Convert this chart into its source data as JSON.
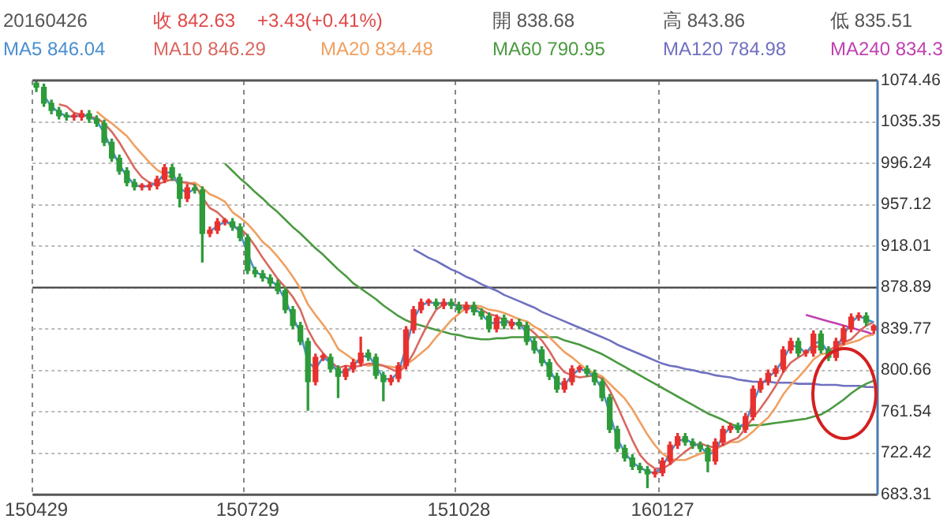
{
  "chart_data": {
    "type": "candlestick",
    "categories": [
      "150429",
      null,
      null,
      null,
      null,
      null,
      null,
      null,
      null,
      null,
      null,
      null,
      null,
      null,
      null,
      null,
      null,
      null,
      null,
      null,
      null,
      null,
      null,
      null,
      null,
      null,
      null,
      null,
      "150729",
      null,
      null,
      null,
      null,
      null,
      null,
      null,
      null,
      null,
      null,
      null,
      null,
      null,
      null,
      null,
      null,
      null,
      null,
      null,
      null,
      null,
      null,
      null,
      null,
      null,
      null,
      null,
      "151028",
      null,
      null,
      null,
      null,
      null,
      null,
      null,
      null,
      null,
      null,
      null,
      null,
      null,
      null,
      null,
      null,
      null,
      null,
      null,
      null,
      null,
      null,
      null,
      null,
      null,
      null,
      "160127",
      null,
      null,
      null,
      null,
      null,
      null,
      null,
      null,
      null,
      null,
      null,
      null,
      null,
      null,
      null,
      null,
      null,
      null,
      null,
      null,
      null,
      null,
      null,
      null,
      null,
      null,
      null,
      null
    ],
    "ohlc": [
      [
        1072,
        1074,
        1064,
        1068
      ],
      [
        1068,
        1071,
        1050,
        1053
      ],
      [
        1053,
        1056,
        1043,
        1046
      ],
      [
        1046,
        1049,
        1038,
        1041
      ],
      [
        1041,
        1044,
        1037,
        1040
      ],
      [
        1040,
        1043,
        1037,
        1040
      ],
      [
        1040,
        1046,
        1037,
        1043
      ],
      [
        1043,
        1046,
        1035,
        1038
      ],
      [
        1038,
        1041,
        1031,
        1034
      ],
      [
        1034,
        1037,
        1013,
        1016
      ],
      [
        1016,
        1019,
        998,
        1001
      ],
      [
        1001,
        1004,
        986,
        989
      ],
      [
        989,
        992,
        975,
        978
      ],
      [
        978,
        981,
        971,
        974
      ],
      [
        974,
        977,
        971,
        974
      ],
      [
        974,
        978,
        971,
        975
      ],
      [
        975,
        984,
        972,
        981
      ],
      [
        981,
        995,
        978,
        992
      ],
      [
        992,
        995,
        980,
        983
      ],
      [
        983,
        986,
        955,
        963
      ],
      [
        963,
        976,
        960,
        973
      ],
      [
        973,
        976,
        968,
        971
      ],
      [
        971,
        974,
        903,
        930
      ],
      [
        930,
        936,
        927,
        933
      ],
      [
        933,
        944,
        930,
        941
      ],
      [
        941,
        944,
        938,
        941
      ],
      [
        941,
        944,
        933,
        936
      ],
      [
        936,
        939,
        923,
        926
      ],
      [
        926,
        929,
        892,
        895
      ],
      [
        895,
        898,
        889,
        892
      ],
      [
        892,
        895,
        885,
        888
      ],
      [
        888,
        891,
        880,
        883
      ],
      [
        883,
        886,
        873,
        876
      ],
      [
        876,
        879,
        855,
        858
      ],
      [
        858,
        861,
        840,
        843
      ],
      [
        843,
        846,
        825,
        828
      ],
      [
        828,
        831,
        763,
        790
      ],
      [
        790,
        816,
        787,
        813
      ],
      [
        813,
        816,
        810,
        813
      ],
      [
        813,
        816,
        799,
        802
      ],
      [
        802,
        805,
        775,
        795
      ],
      [
        795,
        805,
        792,
        802
      ],
      [
        802,
        811,
        799,
        808
      ],
      [
        808,
        832,
        805,
        817
      ],
      [
        817,
        820,
        810,
        813
      ],
      [
        813,
        816,
        793,
        796
      ],
      [
        796,
        799,
        772,
        790
      ],
      [
        790,
        796,
        787,
        793
      ],
      [
        793,
        808,
        790,
        805
      ],
      [
        805,
        842,
        802,
        839
      ],
      [
        839,
        861,
        836,
        858
      ],
      [
        858,
        868,
        855,
        865
      ],
      [
        865,
        868,
        862,
        865
      ],
      [
        865,
        868,
        859,
        862
      ],
      [
        862,
        868,
        859,
        865
      ],
      [
        865,
        868,
        859,
        862
      ],
      [
        862,
        865,
        855,
        858
      ],
      [
        858,
        865,
        855,
        862
      ],
      [
        862,
        865,
        853,
        856
      ],
      [
        856,
        859,
        849,
        852
      ],
      [
        852,
        855,
        837,
        840
      ],
      [
        840,
        853,
        837,
        850
      ],
      [
        850,
        853,
        840,
        843
      ],
      [
        843,
        849,
        840,
        846
      ],
      [
        846,
        849,
        840,
        843
      ],
      [
        843,
        846,
        825,
        828
      ],
      [
        828,
        831,
        817,
        820
      ],
      [
        820,
        823,
        805,
        808
      ],
      [
        808,
        811,
        792,
        795
      ],
      [
        795,
        798,
        780,
        783
      ],
      [
        783,
        793,
        780,
        790
      ],
      [
        790,
        805,
        787,
        802
      ],
      [
        802,
        805,
        799,
        802
      ],
      [
        802,
        805,
        795,
        798
      ],
      [
        798,
        801,
        787,
        790
      ],
      [
        790,
        793,
        772,
        775
      ],
      [
        775,
        778,
        742,
        745
      ],
      [
        745,
        748,
        724,
        727
      ],
      [
        727,
        730,
        715,
        718
      ],
      [
        718,
        721,
        707,
        710
      ],
      [
        710,
        713,
        704,
        707
      ],
      [
        707,
        710,
        690,
        703
      ],
      [
        703,
        707,
        700,
        704
      ],
      [
        704,
        718,
        701,
        715
      ],
      [
        715,
        733,
        712,
        730
      ],
      [
        730,
        741,
        727,
        738
      ],
      [
        738,
        741,
        730,
        733
      ],
      [
        733,
        736,
        727,
        730
      ],
      [
        730,
        733,
        724,
        727
      ],
      [
        727,
        730,
        705,
        715
      ],
      [
        715,
        736,
        712,
        733
      ],
      [
        733,
        748,
        730,
        745
      ],
      [
        745,
        751,
        742,
        748
      ],
      [
        748,
        751,
        742,
        745
      ],
      [
        745,
        760,
        742,
        757
      ],
      [
        757,
        786,
        754,
        783
      ],
      [
        783,
        793,
        780,
        790
      ],
      [
        790,
        801,
        787,
        798
      ],
      [
        798,
        805,
        795,
        802
      ],
      [
        802,
        823,
        799,
        820
      ],
      [
        820,
        831,
        817,
        828
      ],
      [
        828,
        831,
        814,
        817
      ],
      [
        817,
        820,
        814,
        817
      ],
      [
        817,
        838,
        814,
        835
      ],
      [
        835,
        838,
        817,
        820
      ],
      [
        820,
        823,
        810,
        813
      ],
      [
        813,
        831,
        810,
        828
      ],
      [
        828,
        843,
        825,
        840
      ],
      [
        840,
        854,
        837,
        851
      ],
      [
        851,
        855,
        848,
        852
      ],
      [
        852,
        855,
        843,
        846
      ],
      [
        838.68,
        843.86,
        835.51,
        842.63
      ]
    ],
    "colors": [
      "#2e9b3a",
      "#2e9b3a",
      "#2e9b3a",
      "#2e9b3a",
      "#2e9b3a",
      "#e8312f",
      "#e8312f",
      "#2e9b3a",
      "#2e9b3a",
      "#2e9b3a",
      "#2e9b3a",
      "#2e9b3a",
      "#2e9b3a",
      "#2e9b3a",
      "#e8312f",
      "#e8312f",
      "#e8312f",
      "#e8312f",
      "#2e9b3a",
      "#2e9b3a",
      "#e8312f",
      "#2e9b3a",
      "#2e9b3a",
      "#e8312f",
      "#e8312f",
      "#e8312f",
      "#2e9b3a",
      "#2e9b3a",
      "#2e9b3a",
      "#2e9b3a",
      "#2e9b3a",
      "#2e9b3a",
      "#2e9b3a",
      "#2e9b3a",
      "#2e9b3a",
      "#2e9b3a",
      "#2e9b3a",
      "#e8312f",
      "#e8312f",
      "#2e9b3a",
      "#2e9b3a",
      "#e8312f",
      "#e8312f",
      "#e8312f",
      "#2e9b3a",
      "#2e9b3a",
      "#2e9b3a",
      "#e8312f",
      "#e8312f",
      "#e8312f",
      "#e8312f",
      "#e8312f",
      "#e8312f",
      "#2e9b3a",
      "#e8312f",
      "#2e9b3a",
      "#2e9b3a",
      "#e8312f",
      "#2e9b3a",
      "#2e9b3a",
      "#2e9b3a",
      "#e8312f",
      "#2e9b3a",
      "#e8312f",
      "#2e9b3a",
      "#2e9b3a",
      "#2e9b3a",
      "#2e9b3a",
      "#2e9b3a",
      "#2e9b3a",
      "#e8312f",
      "#e8312f",
      "#e8312f",
      "#2e9b3a",
      "#2e9b3a",
      "#2e9b3a",
      "#2e9b3a",
      "#2e9b3a",
      "#2e9b3a",
      "#2e9b3a",
      "#2e9b3a",
      "#2e9b3a",
      "#e8312f",
      "#e8312f",
      "#e8312f",
      "#e8312f",
      "#2e9b3a",
      "#2e9b3a",
      "#2e9b3a",
      "#2e9b3a",
      "#e8312f",
      "#e8312f",
      "#e8312f",
      "#2e9b3a",
      "#e8312f",
      "#e8312f",
      "#e8312f",
      "#e8312f",
      "#e8312f",
      "#e8312f",
      "#e8312f",
      "#2e9b3a",
      "#e8312f",
      "#e8312f",
      "#2e9b3a",
      "#2e9b3a",
      "#e8312f",
      "#e8312f",
      "#e8312f",
      "#e8312f",
      "#2e9b3a",
      "#e8312f"
    ],
    "series": [
      {
        "name": "MA5 846.04",
        "type": "line",
        "color": "#4a8fd0",
        "values": [
          null,
          1060,
          1050,
          1044,
          1041,
          1040,
          1042,
          1041,
          1036,
          1025,
          1009,
          995,
          984,
          976,
          974,
          975,
          978,
          987,
          988,
          973,
          968,
          972,
          null,
          932,
          937,
          941,
          939,
          931,
          911,
          894,
          890,
          886,
          880,
          867,
          851,
          836,
          809,
          802,
          813,
          808,
          799,
          799,
          805,
          813,
          815,
          805,
          793,
          792,
          799,
          822,
          849,
          862,
          865,
          864,
          864,
          864,
          860,
          860,
          859,
          854,
          846,
          845,
          847,
          845,
          845,
          836,
          824,
          814,
          802,
          789,
          787,
          796,
          802,
          800,
          794,
          783,
          760,
          736,
          723,
          714,
          709,
          705,
          704,
          710,
          723,
          734,
          736,
          732,
          729,
          721,
          724,
          739,
          747,
          747,
          751,
          770,
          787,
          794,
          800,
          811,
          824,
          823,
          817,
          826,
          828,
          817,
          821,
          834,
          846,
          852,
          849,
          846.04
        ]
      },
      {
        "name": "MA10 846.29",
        "type": "line",
        "color": "#d9685f",
        "values": [
          null,
          null,
          null,
          1052,
          1050,
          1044,
          1042,
          1040,
          1039,
          1034,
          1026,
          1016,
          1004,
          992,
          983,
          978,
          976,
          979,
          981,
          979,
          978,
          976,
          964,
          954,
          950,
          943,
          936,
          935,
          928,
          918,
          907,
          897,
          887,
          879,
          870,
          858,
          839,
          826,
          817,
          809,
          803,
          805,
          804,
          805,
          807,
          807,
          805,
          802,
          799,
          805,
          817,
          832,
          846,
          858,
          863,
          864,
          862,
          862,
          861,
          858,
          854,
          852,
          848,
          846,
          844,
          842,
          836,
          829,
          819,
          807,
          799,
          796,
          794,
          795,
          796,
          793,
          782,
          767,
          751,
          735,
          721,
          713,
          708,
          708,
          712,
          718,
          724,
          729,
          732,
          729,
          728,
          730,
          734,
          737,
          746,
          756,
          765,
          775,
          786,
          799,
          808,
          813,
          817,
          823,
          823,
          820,
          823,
          827,
          830,
          837,
          843,
          846.29
        ]
      },
      {
        "name": "MA20 834.48",
        "type": "line",
        "color": "#f0a060",
        "values": [
          null,
          null,
          null,
          null,
          null,
          null,
          null,
          null,
          1045,
          1039,
          1034,
          1028,
          1022,
          1013,
          1005,
          997,
          990,
          986,
          982,
          979,
          977,
          978,
          973,
          967,
          964,
          960,
          950,
          945,
          939,
          931,
          922,
          916,
          908,
          899,
          889,
          878,
          863,
          853,
          844,
          834,
          821,
          816,
          811,
          807,
          805,
          806,
          805,
          804,
          803,
          806,
          811,
          817,
          823,
          832,
          840,
          848,
          854,
          860,
          862,
          861,
          858,
          857,
          855,
          852,
          849,
          847,
          842,
          838,
          832,
          825,
          818,
          813,
          807,
          801,
          798,
          795,
          788,
          781,
          774,
          764,
          752,
          740,
          730,
          722,
          717,
          716,
          716,
          719,
          722,
          724,
          726,
          730,
          733,
          733,
          737,
          743,
          750,
          756,
          766,
          778,
          787,
          794,
          802,
          811,
          816,
          817,
          820,
          825,
          827,
          829,
          833,
          834.48
        ]
      },
      {
        "name": "MA60 790.95",
        "type": "line",
        "color": "#4a9a40",
        "values": [
          null,
          null,
          null,
          null,
          null,
          null,
          null,
          null,
          null,
          null,
          null,
          null,
          null,
          null,
          null,
          null,
          null,
          null,
          null,
          null,
          null,
          null,
          null,
          null,
          null,
          996,
          989,
          982,
          976,
          969,
          963,
          956,
          950,
          943,
          936,
          930,
          923,
          916,
          910,
          903,
          896,
          890,
          883,
          878,
          873,
          868,
          862,
          857,
          852,
          848,
          845,
          843,
          841,
          839,
          837,
          835,
          834,
          832,
          831,
          830,
          830,
          831,
          831,
          832,
          832,
          832,
          832,
          832,
          832,
          832,
          829,
          827,
          825,
          822,
          819,
          816,
          812,
          808,
          804,
          800,
          796,
          792,
          788,
          784,
          780,
          776,
          772,
          768,
          764,
          760,
          757,
          754,
          750,
          748,
          748,
          749,
          749,
          750,
          751,
          752,
          753,
          754,
          755,
          757,
          759,
          763,
          768,
          773,
          779,
          784,
          788,
          790.95
        ]
      },
      {
        "name": "MA120 784.98",
        "type": "line",
        "color": "#7070c0",
        "values": [
          null,
          null,
          null,
          null,
          null,
          null,
          null,
          null,
          null,
          null,
          null,
          null,
          null,
          null,
          null,
          null,
          null,
          null,
          null,
          null,
          null,
          null,
          null,
          null,
          null,
          null,
          null,
          null,
          null,
          null,
          null,
          null,
          null,
          null,
          null,
          null,
          null,
          null,
          null,
          null,
          null,
          null,
          null,
          null,
          null,
          null,
          null,
          null,
          null,
          null,
          915,
          911,
          907,
          904,
          900,
          896,
          893,
          889,
          886,
          882,
          879,
          876,
          872,
          869,
          866,
          863,
          860,
          856,
          853,
          850,
          847,
          844,
          841,
          838,
          835,
          832,
          829,
          825,
          822,
          819,
          816,
          813,
          810,
          807,
          805,
          804,
          802,
          801,
          799,
          798,
          796,
          795,
          794,
          792,
          791,
          790,
          790,
          790,
          789,
          789,
          789,
          788,
          788,
          788,
          787,
          787,
          787,
          786,
          786,
          786,
          785,
          784.98
        ]
      },
      {
        "name": "MA240 834.3",
        "type": "line",
        "color": "#c040b0",
        "values": [
          null,
          null,
          null,
          null,
          null,
          null,
          null,
          null,
          null,
          null,
          null,
          null,
          null,
          null,
          null,
          null,
          null,
          null,
          null,
          null,
          null,
          null,
          null,
          null,
          null,
          null,
          null,
          null,
          null,
          null,
          null,
          null,
          null,
          null,
          null,
          null,
          null,
          null,
          null,
          null,
          null,
          null,
          null,
          null,
          null,
          null,
          null,
          null,
          null,
          null,
          null,
          null,
          null,
          null,
          null,
          null,
          null,
          null,
          null,
          null,
          null,
          null,
          null,
          null,
          null,
          null,
          null,
          null,
          null,
          null,
          null,
          null,
          null,
          null,
          null,
          null,
          null,
          null,
          null,
          null,
          null,
          null,
          null,
          null,
          null,
          null,
          null,
          null,
          null,
          null,
          null,
          null,
          null,
          null,
          null,
          null,
          null,
          null,
          null,
          null,
          null,
          null,
          853,
          851,
          849,
          847,
          845,
          843,
          841,
          839,
          837,
          834.3
        ]
      }
    ],
    "ylim": [
      683.31,
      1074.46
    ],
    "yticks": [
      683.31,
      722.42,
      761.54,
      800.66,
      839.77,
      878.89,
      918.01,
      957.12,
      996.24,
      1035.35,
      1074.46
    ],
    "ref_lines": [
      {
        "axis": "y",
        "value": 878.89,
        "color": "#444444"
      }
    ],
    "grid": true,
    "legend": "top",
    "annotations": [
      "20160426",
      "收 842.63",
      "+3.43(+0.41%)",
      "開 838.68",
      "高 843.86",
      "低 835.51"
    ]
  }
}
